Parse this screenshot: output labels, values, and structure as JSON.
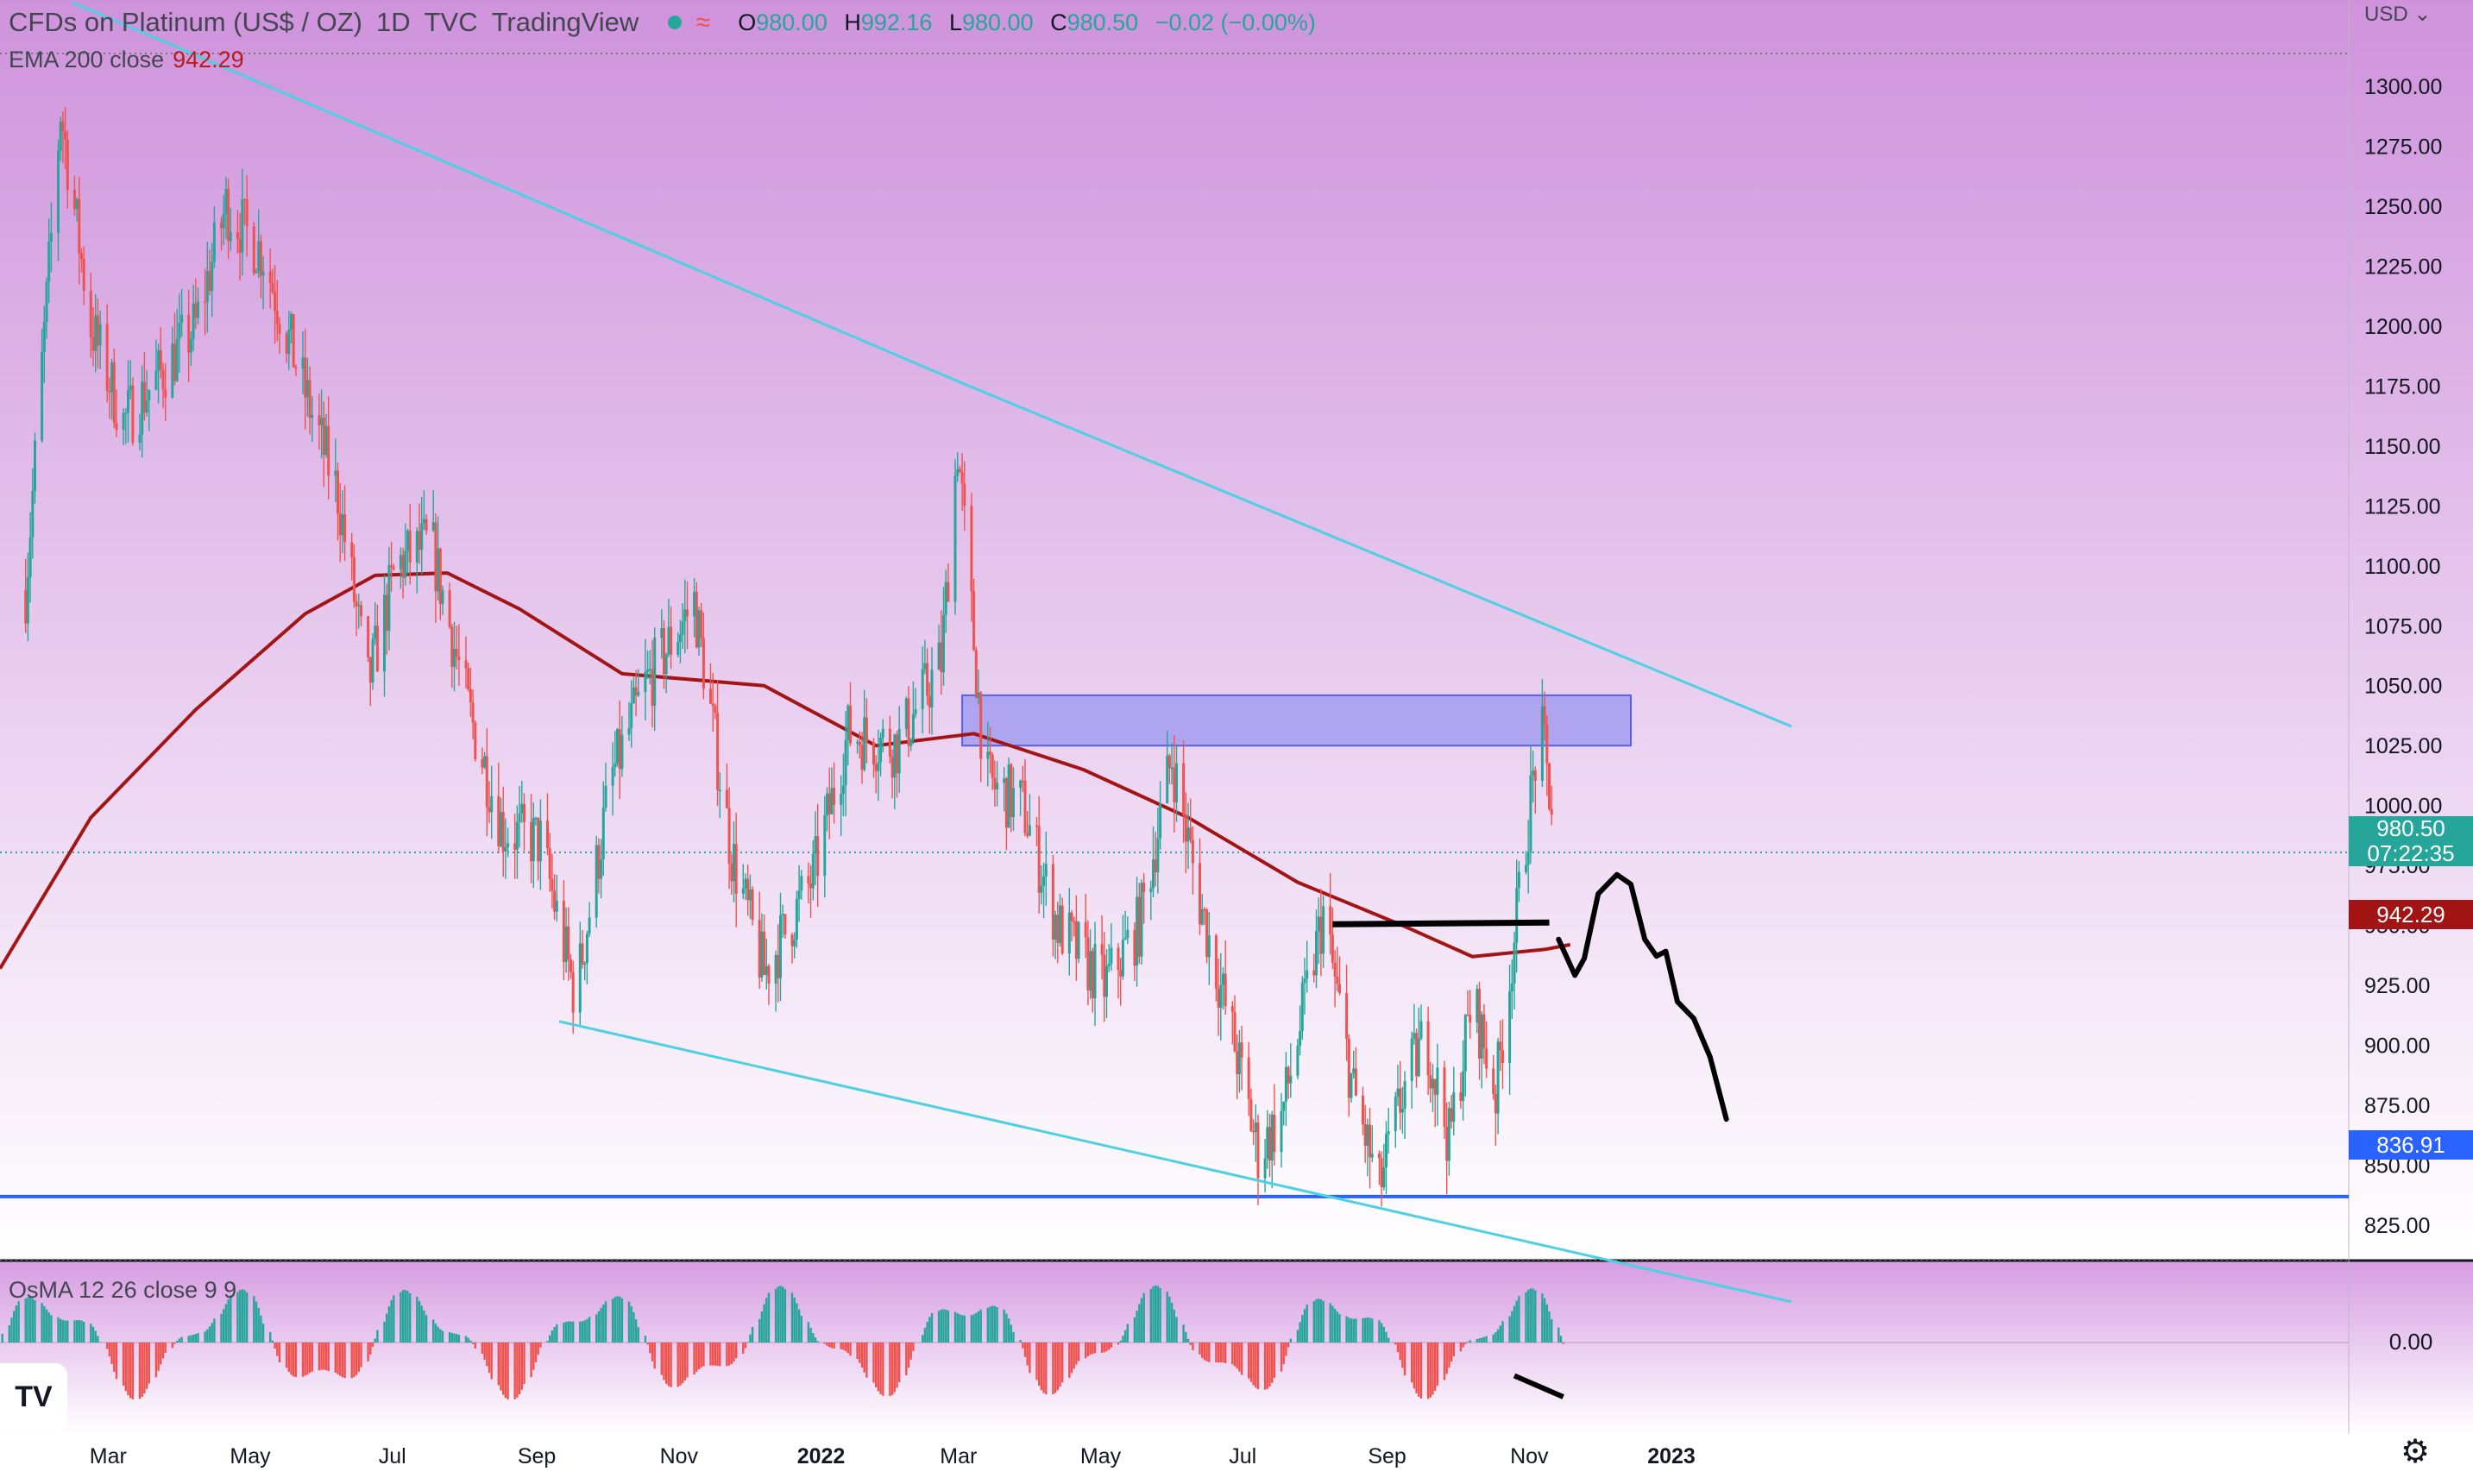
{
  "header": {
    "symbol_title": "CFDs on Platinum (US$ / OZ)",
    "interval": "1D",
    "exchange": "TVC",
    "platform": "TradingView",
    "wave_icon": "≈",
    "ohlc": {
      "o_label": "O",
      "o": "980.00",
      "h_label": "H",
      "h": "992.16",
      "l_label": "L",
      "l": "980.00",
      "c_label": "C",
      "c": "980.50",
      "change": "−0.02 (−0.00%)"
    }
  },
  "currency_button": "USD",
  "indicators": {
    "ema": {
      "label": "EMA 200 close",
      "value": "942.29"
    },
    "osma": {
      "label": "OsMA 12 26 close 9 9",
      "zero_label": "0.00"
    }
  },
  "price_tags": {
    "last_price": "980.50",
    "countdown": "07:22:35",
    "ema_value": "942.29",
    "support_level": "836.91"
  },
  "colors": {
    "up": "#26a69a",
    "down": "#ef5350",
    "ema": "#a31515",
    "trendline": "#4dd0e1",
    "zone": "#7b7ff0",
    "support": "#2962ff",
    "drawing": "#000000",
    "bg_top": "#cf93dc",
    "bg_bottom": "#ffffff"
  },
  "icons": {
    "logo": "tradingview-logo-icon",
    "settings": "gear-icon",
    "dropdown": "chevron-down-icon"
  },
  "logo_text": "TV",
  "chart_data": {
    "type": "candlestick",
    "ylim": [
      790,
      1340
    ],
    "y_ticks": [
      800,
      825,
      850,
      875,
      900,
      925,
      950,
      975,
      1000,
      1025,
      1050,
      1075,
      1100,
      1125,
      1150,
      1175,
      1200,
      1225,
      1250,
      1275,
      1300,
      1325
    ],
    "x_labels": [
      "Mar",
      "May",
      "Jul",
      "Sep",
      "Nov",
      "2022",
      "Mar",
      "May",
      "Jul",
      "Sep",
      "Nov",
      "2023"
    ],
    "price_path": [
      {
        "d": "2021-02-01",
        "p": 1090
      },
      {
        "d": "2021-02-16",
        "p": 1290
      },
      {
        "d": "2021-03-01",
        "p": 1200
      },
      {
        "d": "2021-03-15",
        "p": 1160
      },
      {
        "d": "2021-03-31",
        "p": 1180
      },
      {
        "d": "2021-04-15",
        "p": 1200
      },
      {
        "d": "2021-04-28",
        "p": 1250
      },
      {
        "d": "2021-05-14",
        "p": 1230
      },
      {
        "d": "2021-05-31",
        "p": 1175
      },
      {
        "d": "2021-06-15",
        "p": 1130
      },
      {
        "d": "2021-06-28",
        "p": 1050
      },
      {
        "d": "2021-07-10",
        "p": 1100
      },
      {
        "d": "2021-07-25",
        "p": 1110
      },
      {
        "d": "2021-08-10",
        "p": 1040
      },
      {
        "d": "2021-08-25",
        "p": 990
      },
      {
        "d": "2021-09-10",
        "p": 985
      },
      {
        "d": "2021-09-25",
        "p": 920
      },
      {
        "d": "2021-10-10",
        "p": 1010
      },
      {
        "d": "2021-10-25",
        "p": 1050
      },
      {
        "d": "2021-11-15",
        "p": 1085
      },
      {
        "d": "2021-12-01",
        "p": 980
      },
      {
        "d": "2021-12-15",
        "p": 930
      },
      {
        "d": "2022-01-05",
        "p": 970
      },
      {
        "d": "2022-01-20",
        "p": 1030
      },
      {
        "d": "2022-02-10",
        "p": 1025
      },
      {
        "d": "2022-03-01",
        "p": 1060
      },
      {
        "d": "2022-03-08",
        "p": 1150
      },
      {
        "d": "2022-03-20",
        "p": 1010
      },
      {
        "d": "2022-04-05",
        "p": 1000
      },
      {
        "d": "2022-04-20",
        "p": 950
      },
      {
        "d": "2022-05-10",
        "p": 925
      },
      {
        "d": "2022-05-25",
        "p": 950
      },
      {
        "d": "2022-06-08",
        "p": 1020
      },
      {
        "d": "2022-06-20",
        "p": 960
      },
      {
        "d": "2022-07-05",
        "p": 900
      },
      {
        "d": "2022-07-15",
        "p": 855
      },
      {
        "d": "2022-07-25",
        "p": 870
      },
      {
        "d": "2022-08-12",
        "p": 955
      },
      {
        "d": "2022-08-25",
        "p": 880
      },
      {
        "d": "2022-09-05",
        "p": 840
      },
      {
        "d": "2022-09-15",
        "p": 880
      },
      {
        "d": "2022-09-25",
        "p": 905
      },
      {
        "d": "2022-10-05",
        "p": 860
      },
      {
        "d": "2022-10-15",
        "p": 920
      },
      {
        "d": "2022-10-25",
        "p": 880
      },
      {
        "d": "2022-11-02",
        "p": 945
      },
      {
        "d": "2022-11-13",
        "p": 1035
      },
      {
        "d": "2022-11-20",
        "p": 985
      }
    ],
    "ema_200": [
      {
        "d": "2021-01-21",
        "p": 932
      },
      {
        "d": "2021-03-01",
        "p": 995
      },
      {
        "d": "2021-04-15",
        "p": 1040
      },
      {
        "d": "2021-06-01",
        "p": 1080
      },
      {
        "d": "2021-07-01",
        "p": 1096
      },
      {
        "d": "2021-08-01",
        "p": 1097
      },
      {
        "d": "2021-09-01",
        "p": 1082
      },
      {
        "d": "2021-10-15",
        "p": 1055
      },
      {
        "d": "2021-12-15",
        "p": 1050
      },
      {
        "d": "2022-02-01",
        "p": 1025
      },
      {
        "d": "2022-03-15",
        "p": 1030
      },
      {
        "d": "2022-05-01",
        "p": 1015
      },
      {
        "d": "2022-06-15",
        "p": 995
      },
      {
        "d": "2022-08-01",
        "p": 968
      },
      {
        "d": "2022-09-15",
        "p": 950
      },
      {
        "d": "2022-10-15",
        "p": 937
      },
      {
        "d": "2022-11-15",
        "p": 940
      },
      {
        "d": "2022-11-26",
        "p": 942
      }
    ],
    "last_price": 980.5,
    "ema_last": 942.29,
    "support_level": 836.91,
    "dotted_low_level": 825,
    "upper_trendline": [
      {
        "d": "2021-02-21",
        "p": 1335
      },
      {
        "d": "2022-03-08",
        "p": 1177
      },
      {
        "d": "2023-03-01",
        "p": 1033
      }
    ],
    "lower_trendline": [
      {
        "d": "2021-09-18",
        "p": 910
      },
      {
        "d": "2023-03-01",
        "p": 793
      }
    ],
    "resistance_zone": {
      "d1": "2022-03-10",
      "d2": "2022-12-22",
      "p1": 1025,
      "p2": 1046
    },
    "neckline": {
      "d1": "2022-08-16",
      "d2": "2022-11-17",
      "p": 962
    },
    "projection_path": [
      {
        "d": "2022-11-21",
        "p": 955
      },
      {
        "d": "2022-11-28",
        "p": 940
      },
      {
        "d": "2022-12-02",
        "p": 947
      },
      {
        "d": "2022-12-08",
        "p": 974
      },
      {
        "d": "2022-12-16",
        "p": 982
      },
      {
        "d": "2022-12-22",
        "p": 978
      },
      {
        "d": "2022-12-28",
        "p": 955
      },
      {
        "d": "2023-01-02",
        "p": 948
      },
      {
        "d": "2023-01-06",
        "p": 950
      },
      {
        "d": "2023-01-11",
        "p": 929
      },
      {
        "d": "2023-01-18",
        "p": 922
      },
      {
        "d": "2023-01-25",
        "p": 906
      },
      {
        "d": "2023-02-01",
        "p": 880
      }
    ],
    "osma_divergence_line": [
      {
        "d": "2022-11-02",
        "p": -0.55
      },
      {
        "d": "2022-11-23",
        "p": -0.9
      }
    ]
  }
}
